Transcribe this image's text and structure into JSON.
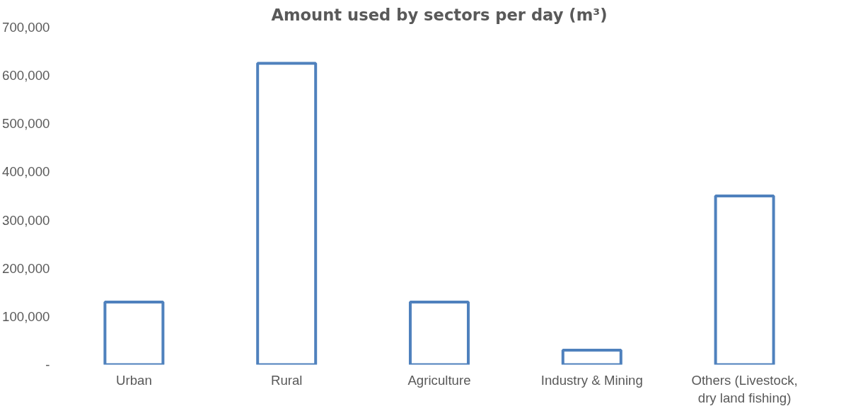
{
  "chart_data": {
    "type": "bar",
    "title": "Amount used by sectors per day (m³)",
    "categories": [
      "Urban",
      "Rural",
      "Agriculture",
      "Industry & Mining",
      "Others (Livestock, dry land fishing)"
    ],
    "values": [
      130000,
      625000,
      130000,
      30000,
      350000
    ],
    "color": "#4f81bd",
    "ylim": [
      0,
      700000
    ],
    "yticks": [
      {
        "value": 0,
        "label": "-"
      },
      {
        "value": 100000,
        "label": "100,000"
      },
      {
        "value": 200000,
        "label": "200,000"
      },
      {
        "value": 300000,
        "label": "300,000"
      },
      {
        "value": 400000,
        "label": "400,000"
      },
      {
        "value": 500000,
        "label": "500,000"
      },
      {
        "value": 600000,
        "label": "600,000"
      },
      {
        "value": 700000,
        "label": "700,000"
      }
    ],
    "grid": false
  }
}
